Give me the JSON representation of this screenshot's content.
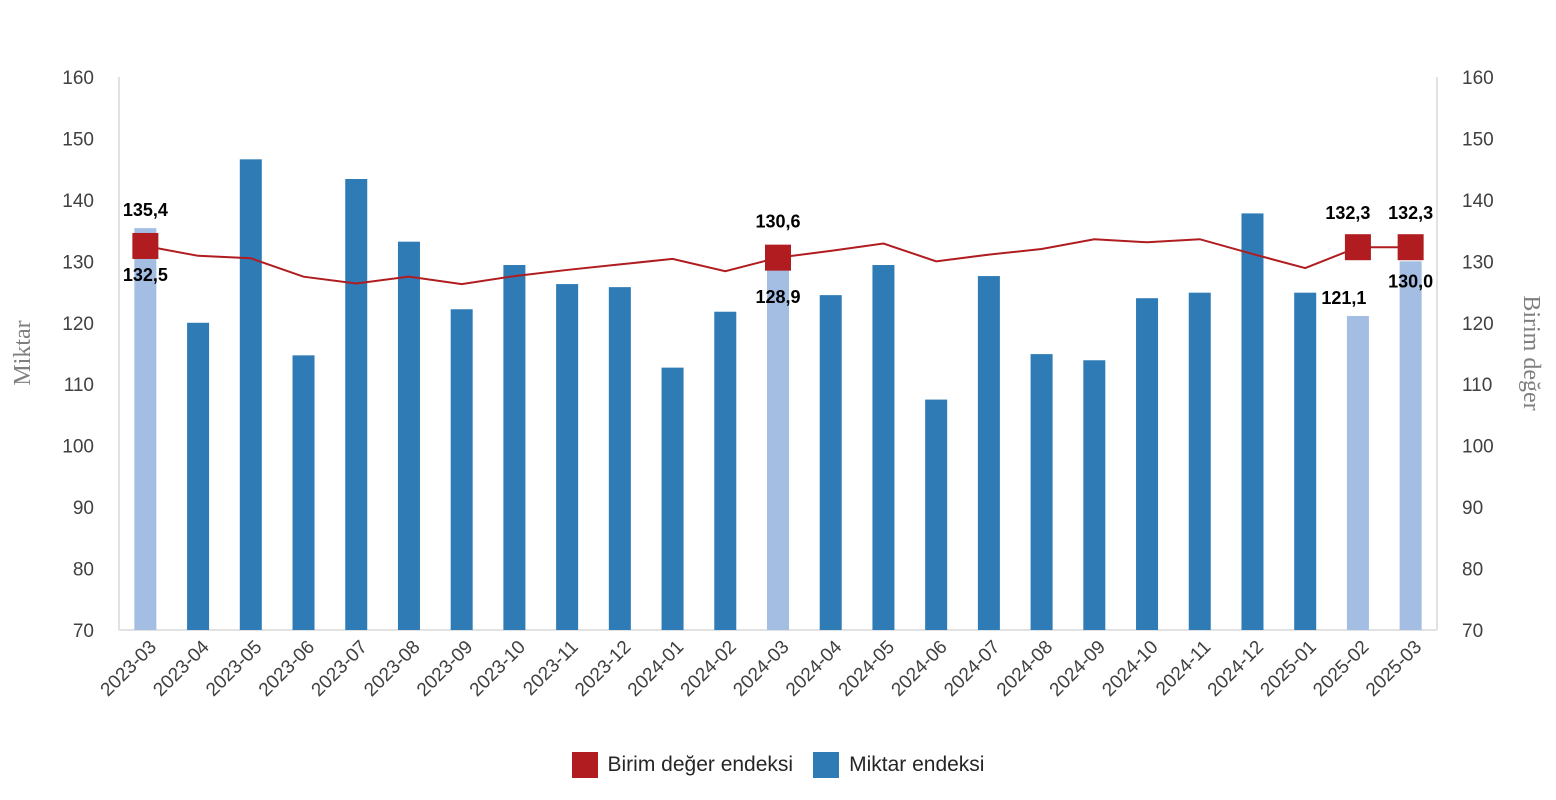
{
  "chart_data": {
    "type": "bar",
    "categories": [
      "2023-03",
      "2023-04",
      "2023-05",
      "2023-06",
      "2023-07",
      "2023-08",
      "2023-09",
      "2023-10",
      "2023-11",
      "2023-12",
      "2024-01",
      "2024-02",
      "2024-03",
      "2024-04",
      "2024-05",
      "2024-06",
      "2024-07",
      "2024-08",
      "2024-09",
      "2024-10",
      "2024-11",
      "2024-12",
      "2025-01",
      "2025-02",
      "2025-03"
    ],
    "series": [
      {
        "name": "Miktar endeksi",
        "type": "bar",
        "axis": "left",
        "values": [
          135.4,
          120.0,
          146.6,
          114.7,
          143.4,
          133.2,
          122.2,
          129.4,
          126.3,
          125.8,
          112.7,
          121.8,
          128.9,
          124.5,
          129.4,
          107.5,
          127.6,
          114.9,
          113.9,
          124.0,
          124.9,
          137.8,
          124.9,
          121.1,
          130.0
        ],
        "highlight_indices": [
          0,
          12,
          23,
          24
        ]
      },
      {
        "name": "Birim değer endeksi",
        "type": "line",
        "axis": "right",
        "values": [
          132.5,
          130.9,
          130.5,
          127.5,
          126.4,
          127.5,
          126.3,
          127.6,
          128.6,
          129.5,
          130.4,
          128.4,
          130.6,
          131.7,
          132.9,
          130.0,
          131.1,
          132.0,
          133.6,
          133.1,
          133.6,
          131.2,
          128.9,
          132.3,
          132.3
        ],
        "marker_indices": [
          0,
          12,
          23,
          24
        ]
      }
    ],
    "data_labels": [
      {
        "category": "2023-03",
        "bar": "135,4",
        "line": "132,5"
      },
      {
        "category": "2024-03",
        "bar": "128,9",
        "line": "130,6"
      },
      {
        "category": "2025-02",
        "bar": "121,1",
        "line": "132,3"
      },
      {
        "category": "2025-03",
        "bar": "130,0",
        "line": "132,3"
      }
    ],
    "ylabel": "Miktar",
    "y2label": "Birim değer",
    "ylim": [
      70,
      160
    ],
    "y2lim": [
      70,
      160
    ],
    "yticks": [
      "70",
      "80",
      "90",
      "100",
      "110",
      "120",
      "130",
      "140",
      "150",
      "160"
    ],
    "grid": false,
    "legend_position": "bottom",
    "colors": {
      "bar": "#2e7bb6",
      "bar_highlight": "#a3bde3",
      "line": "#b01c1f",
      "marker": "#b01c1f",
      "axis": "#d9d9d9"
    }
  },
  "legend": [
    {
      "label": "Birim değer endeksi",
      "color": "#b01c1f"
    },
    {
      "label": "Miktar endeksi",
      "color": "#2e7bb6"
    }
  ]
}
